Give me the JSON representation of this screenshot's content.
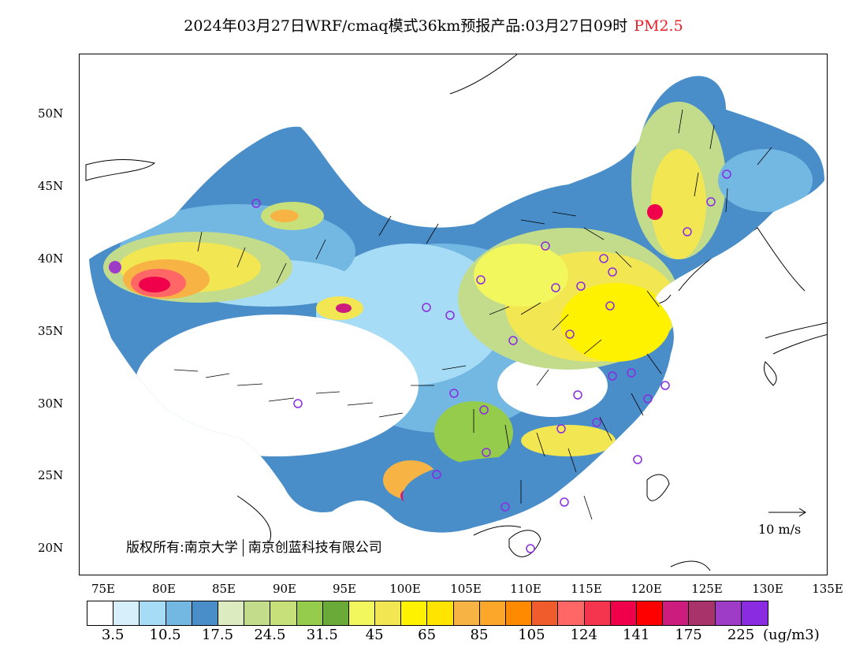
{
  "title": {
    "main": "2024年03月27日WRF/cmaq模式36km预报产品:03月27日09时",
    "pollutant": "PM2.5"
  },
  "map": {
    "lat_labels": [
      "50N",
      "45N",
      "40N",
      "35N",
      "30N",
      "25N",
      "20N"
    ],
    "lon_labels": [
      "75E",
      "80E",
      "85E",
      "90E",
      "95E",
      "100E",
      "105E",
      "110E",
      "115E",
      "120E",
      "125E",
      "130E",
      "135E"
    ],
    "lon_range": [
      73,
      135
    ],
    "lat_range": [
      18,
      54
    ],
    "copyright_left": "版权所有:南京大学",
    "copyright_right": "南京创蓝科技有限公司",
    "reference_vector_label": "10 m/s"
  },
  "legend": {
    "colors": [
      "#ffffff",
      "#d7effb",
      "#a6dcf5",
      "#72b8e3",
      "#4a8ec9",
      "#dcebc0",
      "#c2dc8c",
      "#c8e07a",
      "#96cc4c",
      "#6aaa38",
      "#f2f75e",
      "#f2e652",
      "#fff200",
      "#ffe400",
      "#f7b444",
      "#fca62a",
      "#ff8a00",
      "#f05c2c",
      "#ff6666",
      "#f5344e",
      "#f0004a",
      "#ff0000",
      "#cc1c7e",
      "#a8336a",
      "#9e3cc8",
      "#8a2be2"
    ],
    "labels": [
      "3.5",
      "10.5",
      "17.5",
      "24.5",
      "31.5",
      "45",
      "65",
      "85",
      "105",
      "124",
      "141",
      "175",
      "225"
    ],
    "units": "(ug/m3)"
  }
}
